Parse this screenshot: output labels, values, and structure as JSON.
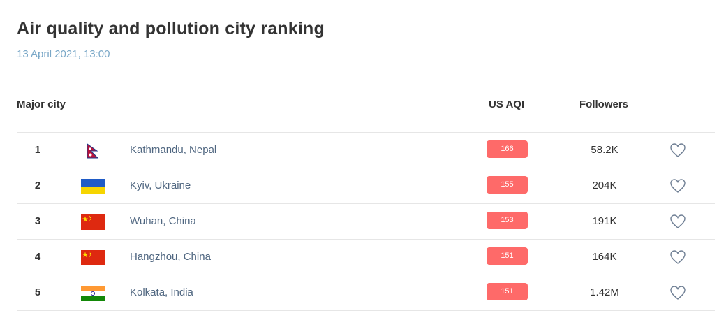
{
  "title": "Air quality and pollution city ranking",
  "date": "13 April 2021, 13:00",
  "columns": {
    "city": "Major city",
    "aqi": "US AQI",
    "followers": "Followers"
  },
  "colors": {
    "aqi_badge": "#fe6a69",
    "date_text": "#79a7c7",
    "city_text": "#4f6680"
  },
  "rows": [
    {
      "rank": "1",
      "flag": "nepal-flag-icon",
      "city": "Kathmandu, Nepal",
      "aqi": "166",
      "followers": "58.2K"
    },
    {
      "rank": "2",
      "flag": "ukraine-flag-icon",
      "city": "Kyiv, Ukraine",
      "aqi": "155",
      "followers": "204K"
    },
    {
      "rank": "3",
      "flag": "china-flag-icon",
      "city": "Wuhan, China",
      "aqi": "153",
      "followers": "191K"
    },
    {
      "rank": "4",
      "flag": "china-flag-icon",
      "city": "Hangzhou, China",
      "aqi": "151",
      "followers": "164K"
    },
    {
      "rank": "5",
      "flag": "india-flag-icon",
      "city": "Kolkata, India",
      "aqi": "151",
      "followers": "1.42M"
    }
  ]
}
